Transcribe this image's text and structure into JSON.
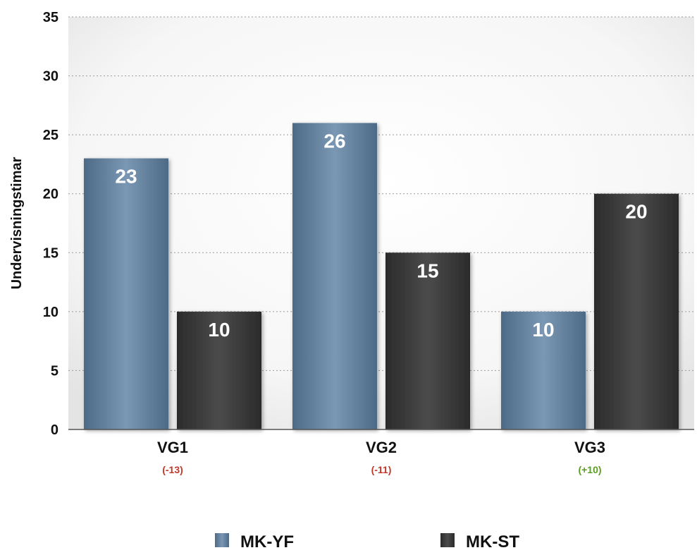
{
  "chart_data": {
    "type": "bar",
    "title": "",
    "xlabel": "",
    "ylabel": "Undervisningstimar",
    "ylim": [
      0,
      35
    ],
    "yticks": [
      0,
      5,
      10,
      15,
      20,
      25,
      30,
      35
    ],
    "grid": true,
    "legend_position": "bottom",
    "categories": [
      "VG1",
      "VG2",
      "VG3"
    ],
    "category_notes": [
      "(-13)",
      "(-11)",
      "(+10)"
    ],
    "category_note_colors": [
      "#c0392b",
      "#c0392b",
      "#5a9e1f"
    ],
    "series": [
      {
        "name": "MK-YF",
        "values": [
          23,
          26,
          10
        ],
        "color": "#5f7f9e"
      },
      {
        "name": "MK-ST",
        "values": [
          10,
          15,
          20
        ],
        "color": "#3a3a3a"
      }
    ]
  }
}
